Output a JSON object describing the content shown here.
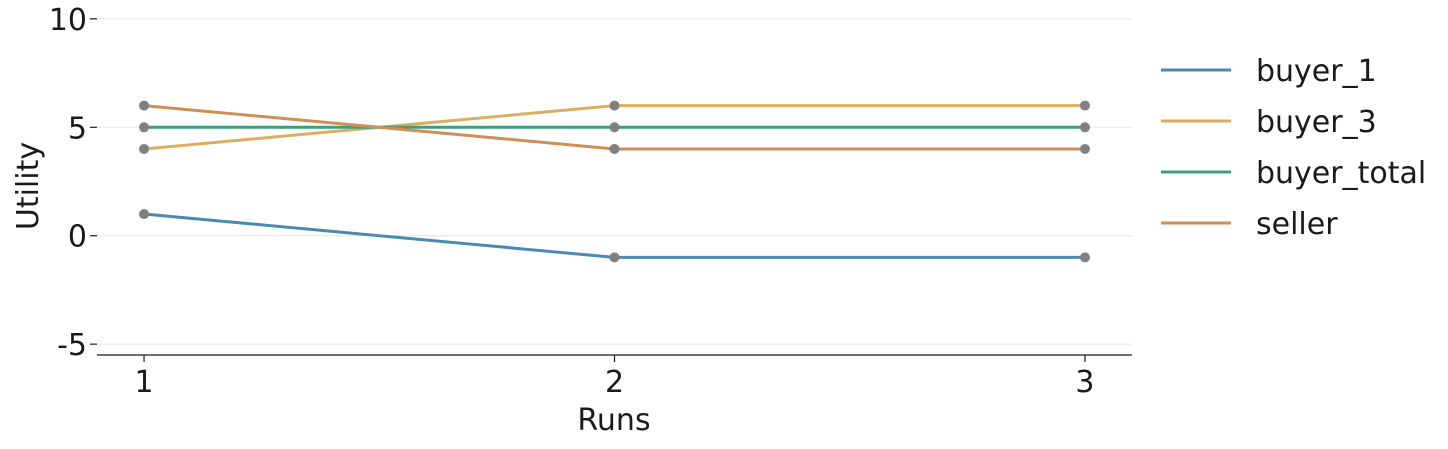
{
  "chart_data": {
    "type": "line",
    "title": "",
    "xlabel": "Runs",
    "ylabel": "Utility",
    "x": [
      1,
      2,
      3
    ],
    "xticks": [
      "1",
      "2",
      "3"
    ],
    "xlim": [
      0.9,
      3.1
    ],
    "ylim": [
      -5.5,
      10.5
    ],
    "yticks": [
      -5,
      0,
      5,
      10
    ],
    "yticklabels": [
      "-5",
      "0",
      "5",
      "10"
    ],
    "grid": "horizontal",
    "legend_position": "right",
    "marker_color": "#808080",
    "series": [
      {
        "name": "buyer_1",
        "color": "#4a8ab0",
        "values": [
          1,
          -1,
          -1
        ]
      },
      {
        "name": "buyer_3",
        "color": "#dcae62",
        "values": [
          4,
          6,
          6
        ]
      },
      {
        "name": "buyer_total",
        "color": "#3f9e7f",
        "values": [
          5,
          5,
          5
        ]
      },
      {
        "name": "seller",
        "color": "#cf8f55",
        "values": [
          6,
          4,
          4
        ]
      }
    ]
  }
}
